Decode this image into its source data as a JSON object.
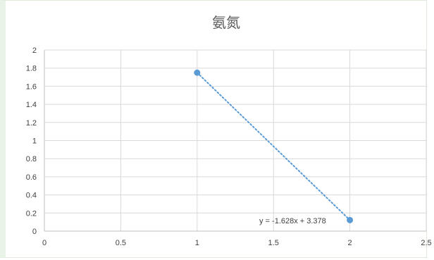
{
  "chart_data": {
    "type": "scatter",
    "title": "氨氮",
    "xlabel": "",
    "ylabel": "",
    "xlim": [
      0,
      2.5
    ],
    "ylim": [
      0,
      2
    ],
    "x_ticks": [
      "0",
      "0.5",
      "1",
      "1.5",
      "2",
      "2.5"
    ],
    "y_ticks": [
      "0",
      "0.2",
      "0.4",
      "0.6",
      "0.8",
      "1",
      "1.2",
      "1.4",
      "1.6",
      "1.8",
      "2"
    ],
    "grid": true,
    "legend": "none",
    "series": [
      {
        "x": [
          1,
          2
        ],
        "y": [
          1.75,
          0.122
        ],
        "color": "#5b9bd5"
      }
    ],
    "trendline": {
      "type": "linear",
      "slope": -1.628,
      "intercept": 3.378,
      "x_range": [
        1,
        2
      ],
      "equation_label": "y = -1.628x + 3.378",
      "color": "#5b9bd5",
      "style": "dotted"
    }
  }
}
